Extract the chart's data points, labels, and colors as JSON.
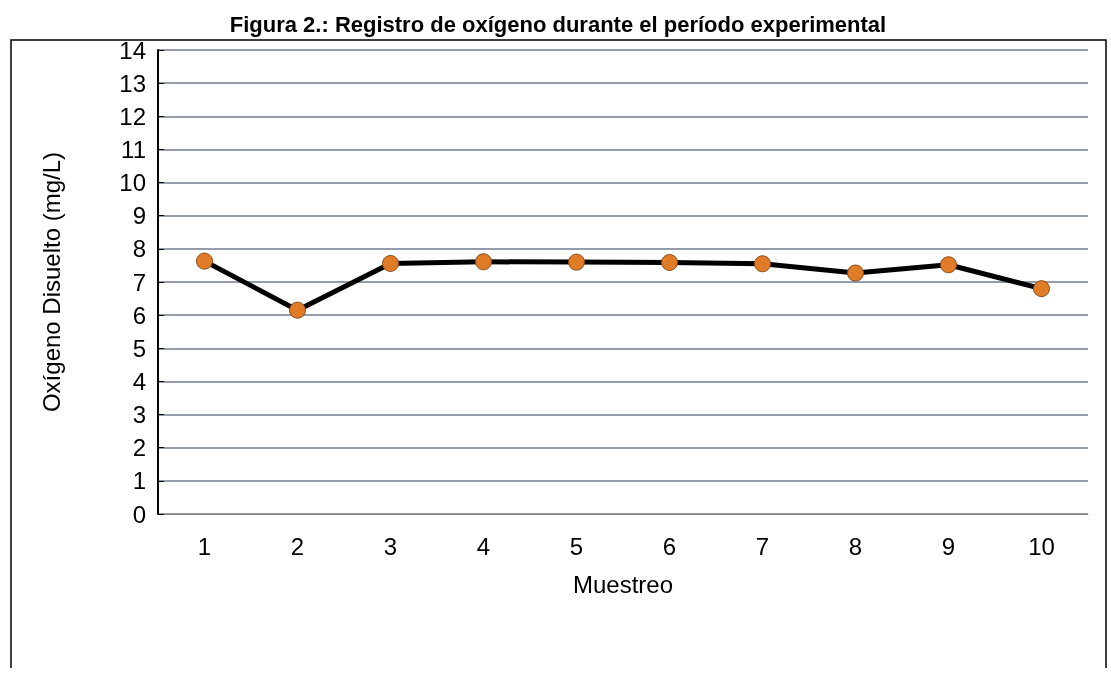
{
  "chart_data": {
    "type": "line",
    "title": "Figura 2.: Registro de oxígeno durante el período experimental",
    "xlabel": "Muestreo",
    "ylabel": "Oxígeno Disuelto (mg/L)",
    "categories": [
      "1",
      "2",
      "3",
      "4",
      "5",
      "6",
      "7",
      "8",
      "9",
      "10"
    ],
    "series": [
      {
        "color": "#000000",
        "values": [
          7.63,
          6.15,
          7.56,
          7.61,
          7.6,
          7.59,
          7.55,
          7.27,
          7.52,
          6.8
        ]
      }
    ],
    "ylim": [
      0,
      14
    ],
    "yticks": [
      0,
      1,
      2,
      3,
      4,
      5,
      6,
      7,
      8,
      9,
      10,
      11,
      12,
      13,
      14
    ],
    "grid": "y",
    "marker": "circle",
    "line_style": "solid"
  }
}
